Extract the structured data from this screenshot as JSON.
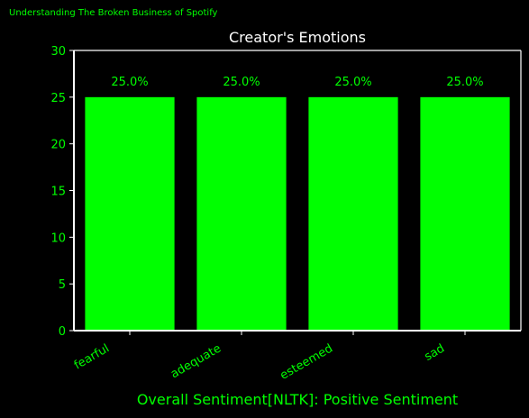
{
  "page": {
    "header": "Understanding The Broken Business of Spotify",
    "footer": "Overall Sentiment[NLTK]: Positive Sentiment"
  },
  "colors": {
    "background": "#000000",
    "accent": "#00ff00",
    "axis": "#ffffff",
    "title": "#ffffff"
  },
  "chart_data": {
    "type": "bar",
    "title": "Creator's Emotions",
    "xlabel": "",
    "ylabel": "",
    "categories": [
      "fearful",
      "adequate",
      "esteemed",
      "sad"
    ],
    "values": [
      25,
      25,
      25,
      25
    ],
    "data_labels": [
      "25.0%",
      "25.0%",
      "25.0%",
      "25.0%"
    ],
    "yticks": [
      0,
      5,
      10,
      15,
      20,
      25,
      30
    ],
    "ylim": [
      0,
      30
    ],
    "grid": false,
    "legend": "none"
  }
}
